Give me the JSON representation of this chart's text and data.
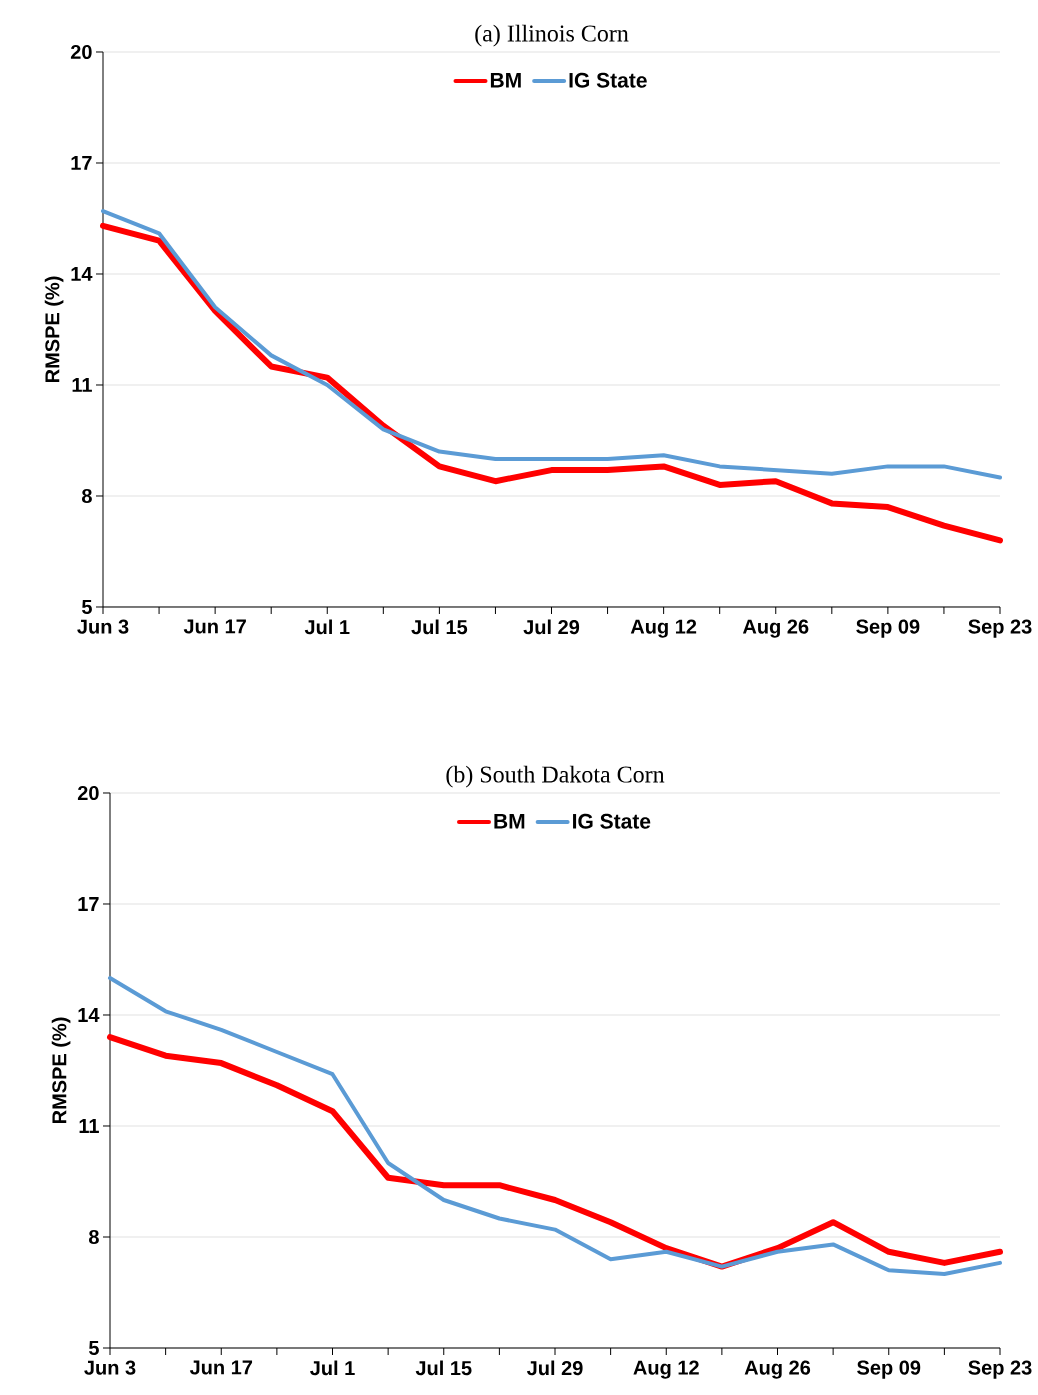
{
  "chart_data": [
    {
      "type": "line",
      "title": "(a) Illinois Corn",
      "ylabel": "RMSPE (%)",
      "categories": [
        "Jun 3",
        null,
        "Jun 17",
        null,
        "Jul 1",
        null,
        "Jul 15",
        null,
        "Jul 29",
        null,
        "Aug 12",
        null,
        "Aug 26",
        null,
        "Sep 09",
        null,
        "Sep 23"
      ],
      "series": [
        {
          "name": "BM",
          "color": "#ff0000",
          "values": [
            15.3,
            14.9,
            13.0,
            11.5,
            11.2,
            9.9,
            8.8,
            8.4,
            8.7,
            8.7,
            8.8,
            8.3,
            8.4,
            7.8,
            7.7,
            7.2,
            6.8
          ]
        },
        {
          "name": "IG State",
          "color": "#5b9bd5",
          "values": [
            15.7,
            15.1,
            13.1,
            11.8,
            11.0,
            9.8,
            9.2,
            9.0,
            9.0,
            9.0,
            9.1,
            8.8,
            8.7,
            8.6,
            8.8,
            8.8,
            8.5
          ]
        }
      ],
      "ylim": [
        5,
        20
      ],
      "yticks": [
        5,
        8,
        11,
        14,
        17,
        20
      ],
      "grid": "y",
      "legend": "top"
    },
    {
      "type": "line",
      "title": "(b) South Dakota Corn",
      "ylabel": "RMSPE (%)",
      "categories": [
        "Jun 3",
        null,
        "Jun 17",
        null,
        "Jul 1",
        null,
        "Jul 15",
        null,
        "Jul 29",
        null,
        "Aug 12",
        null,
        "Aug 26",
        null,
        "Sep 09",
        null,
        "Sep 23"
      ],
      "series": [
        {
          "name": "BM",
          "color": "#ff0000",
          "values": [
            13.4,
            12.9,
            12.7,
            12.1,
            11.4,
            9.6,
            9.4,
            9.4,
            9.0,
            8.4,
            7.7,
            7.2,
            7.7,
            8.4,
            7.6,
            7.3,
            7.6
          ]
        },
        {
          "name": "IG State",
          "color": "#5b9bd5",
          "values": [
            15.0,
            14.1,
            13.6,
            13.0,
            12.4,
            10.0,
            9.0,
            8.5,
            8.2,
            7.4,
            7.6,
            7.2,
            7.6,
            7.8,
            7.1,
            7.0,
            7.3
          ]
        }
      ],
      "ylim": [
        5,
        20
      ],
      "yticks": [
        5,
        8,
        11,
        14,
        17,
        20
      ],
      "grid": "y",
      "legend": "top"
    }
  ]
}
